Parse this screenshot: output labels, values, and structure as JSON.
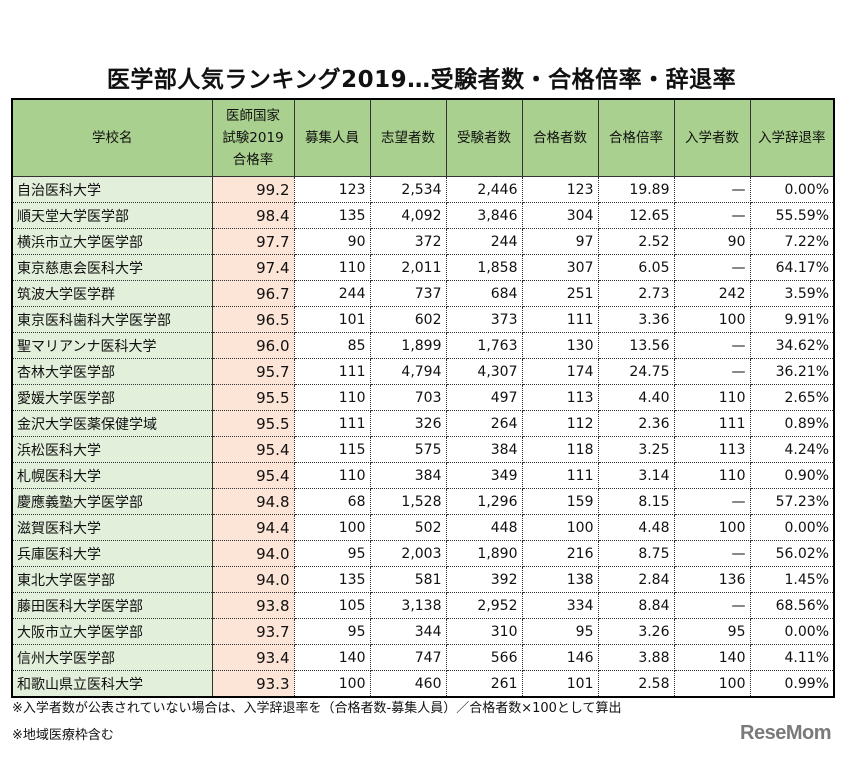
{
  "title": "医学部人気ランキング2019…受験者数・合格倍率・辞退率",
  "table": {
    "headers": {
      "school": "学校名",
      "pass_rate_line1": "医師国家",
      "pass_rate_line2": "試験2019",
      "pass_rate_line3": "合格率",
      "quota": "募集人員",
      "applicants": "志望者数",
      "examinees": "受験者数",
      "passers": "合格者数",
      "ratio": "合格倍率",
      "enrolled": "入学者数",
      "decline_rate": "入学辞退率"
    },
    "rows": [
      {
        "school": "自治医科大学",
        "pass": "99.2",
        "quota": "123",
        "applicants": "2,534",
        "examinees": "2,446",
        "passers": "123",
        "ratio": "19.89",
        "enrolled": "—",
        "decline": "0.00%"
      },
      {
        "school": "順天堂大学医学部",
        "pass": "98.4",
        "quota": "135",
        "applicants": "4,092",
        "examinees": "3,846",
        "passers": "304",
        "ratio": "12.65",
        "enrolled": "—",
        "decline": "55.59%"
      },
      {
        "school": "横浜市立大学医学部",
        "pass": "97.7",
        "quota": "90",
        "applicants": "372",
        "examinees": "244",
        "passers": "97",
        "ratio": "2.52",
        "enrolled": "90",
        "decline": "7.22%"
      },
      {
        "school": "東京慈恵会医科大学",
        "pass": "97.4",
        "quota": "110",
        "applicants": "2,011",
        "examinees": "1,858",
        "passers": "307",
        "ratio": "6.05",
        "enrolled": "—",
        "decline": "64.17%"
      },
      {
        "school": "筑波大学医学群",
        "pass": "96.7",
        "quota": "244",
        "applicants": "737",
        "examinees": "684",
        "passers": "251",
        "ratio": "2.73",
        "enrolled": "242",
        "decline": "3.59%"
      },
      {
        "school": "東京医科歯科大学医学部",
        "pass": "96.5",
        "quota": "101",
        "applicants": "602",
        "examinees": "373",
        "passers": "111",
        "ratio": "3.36",
        "enrolled": "100",
        "decline": "9.91%"
      },
      {
        "school": "聖マリアンナ医科大学",
        "pass": "96.0",
        "quota": "85",
        "applicants": "1,899",
        "examinees": "1,763",
        "passers": "130",
        "ratio": "13.56",
        "enrolled": "—",
        "decline": "34.62%"
      },
      {
        "school": "杏林大学医学部",
        "pass": "95.7",
        "quota": "111",
        "applicants": "4,794",
        "examinees": "4,307",
        "passers": "174",
        "ratio": "24.75",
        "enrolled": "—",
        "decline": "36.21%"
      },
      {
        "school": "愛媛大学医学部",
        "pass": "95.5",
        "quota": "110",
        "applicants": "703",
        "examinees": "497",
        "passers": "113",
        "ratio": "4.40",
        "enrolled": "110",
        "decline": "2.65%"
      },
      {
        "school": "金沢大学医薬保健学域",
        "pass": "95.5",
        "quota": "111",
        "applicants": "326",
        "examinees": "264",
        "passers": "112",
        "ratio": "2.36",
        "enrolled": "111",
        "decline": "0.89%"
      },
      {
        "school": "浜松医科大学",
        "pass": "95.4",
        "quota": "115",
        "applicants": "575",
        "examinees": "384",
        "passers": "118",
        "ratio": "3.25",
        "enrolled": "113",
        "decline": "4.24%"
      },
      {
        "school": "札幌医科大学",
        "pass": "95.4",
        "quota": "110",
        "applicants": "384",
        "examinees": "349",
        "passers": "111",
        "ratio": "3.14",
        "enrolled": "110",
        "decline": "0.90%"
      },
      {
        "school": "慶應義塾大学医学部",
        "pass": "94.8",
        "quota": "68",
        "applicants": "1,528",
        "examinees": "1,296",
        "passers": "159",
        "ratio": "8.15",
        "enrolled": "—",
        "decline": "57.23%"
      },
      {
        "school": "滋賀医科大学",
        "pass": "94.4",
        "quota": "100",
        "applicants": "502",
        "examinees": "448",
        "passers": "100",
        "ratio": "4.48",
        "enrolled": "100",
        "decline": "0.00%"
      },
      {
        "school": "兵庫医科大学",
        "pass": "94.0",
        "quota": "95",
        "applicants": "2,003",
        "examinees": "1,890",
        "passers": "216",
        "ratio": "8.75",
        "enrolled": "—",
        "decline": "56.02%"
      },
      {
        "school": "東北大学医学部",
        "pass": "94.0",
        "quota": "135",
        "applicants": "581",
        "examinees": "392",
        "passers": "138",
        "ratio": "2.84",
        "enrolled": "136",
        "decline": "1.45%"
      },
      {
        "school": "藤田医科大学医学部",
        "pass": "93.8",
        "quota": "105",
        "applicants": "3,138",
        "examinees": "2,952",
        "passers": "334",
        "ratio": "8.84",
        "enrolled": "—",
        "decline": "68.56%"
      },
      {
        "school": "大阪市立大学医学部",
        "pass": "93.7",
        "quota": "95",
        "applicants": "344",
        "examinees": "310",
        "passers": "95",
        "ratio": "3.26",
        "enrolled": "95",
        "decline": "0.00%"
      },
      {
        "school": "信州大学医学部",
        "pass": "93.4",
        "quota": "140",
        "applicants": "747",
        "examinees": "566",
        "passers": "146",
        "ratio": "3.88",
        "enrolled": "140",
        "decline": "4.11%"
      },
      {
        "school": "和歌山県立医科大学",
        "pass": "93.3",
        "quota": "100",
        "applicants": "460",
        "examinees": "261",
        "passers": "101",
        "ratio": "2.58",
        "enrolled": "100",
        "decline": "0.99%"
      }
    ]
  },
  "notes": {
    "note1": "※入学者数が公表されていない場合は、入学辞退率を（合格者数-募集人員）／合格者数×100として算出",
    "note2": "※地域医療枠含む"
  },
  "logo": "ReseMom",
  "colors": {
    "header_bg": "#a9d08e",
    "name_bg": "#e2efda",
    "pass_rate_bg": "#fce4d6"
  }
}
